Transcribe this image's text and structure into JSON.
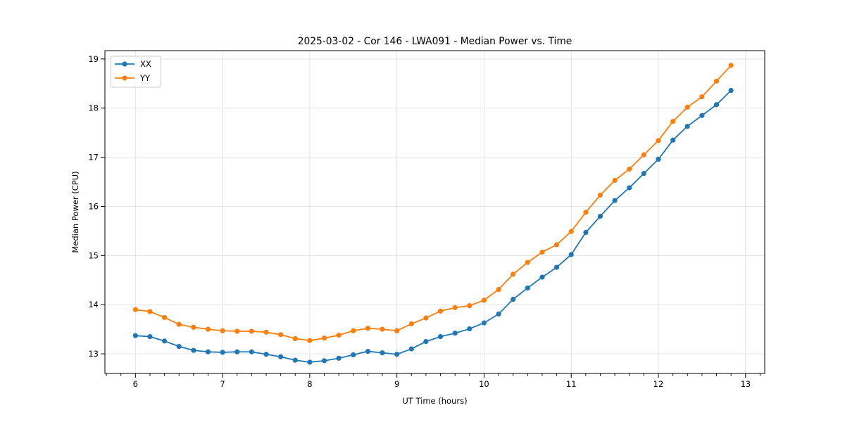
{
  "chart_data": {
    "type": "line",
    "title": "2025-03-02 - Cor 146 - LWA091 - Median Power vs. Time",
    "xlabel": "UT Time (hours)",
    "ylabel": "Median Power (CPU)",
    "xlim": [
      5.65,
      13.22
    ],
    "ylim": [
      12.6,
      19.17
    ],
    "x_ticks": [
      6,
      7,
      8,
      9,
      10,
      11,
      12,
      13
    ],
    "y_ticks": [
      13,
      14,
      15,
      16,
      17,
      18,
      19
    ],
    "x_minor_per_hour": 6,
    "grid": "major",
    "grid_color": "#e4e4e4",
    "legend_position": "upper-left",
    "marker": "circle",
    "x": [
      6.0,
      6.167,
      6.333,
      6.5,
      6.667,
      6.833,
      7.0,
      7.167,
      7.333,
      7.5,
      7.667,
      7.833,
      8.0,
      8.167,
      8.333,
      8.5,
      8.667,
      8.833,
      9.0,
      9.167,
      9.333,
      9.5,
      9.667,
      9.833,
      10.0,
      10.167,
      10.333,
      10.5,
      10.667,
      10.833,
      11.0,
      11.167,
      11.333,
      11.5,
      11.667,
      11.833,
      12.0,
      12.167,
      12.333,
      12.5,
      12.667,
      12.833
    ],
    "series": [
      {
        "name": "XX",
        "color": "#1f77b4",
        "values": [
          13.37,
          13.35,
          13.26,
          13.15,
          13.07,
          13.04,
          13.03,
          13.04,
          13.04,
          12.99,
          12.94,
          12.87,
          12.83,
          12.86,
          12.91,
          12.98,
          13.05,
          13.02,
          12.99,
          13.1,
          13.25,
          13.35,
          13.42,
          13.51,
          13.63,
          13.81,
          14.11,
          14.34,
          14.56,
          14.76,
          15.02,
          15.47,
          15.8,
          16.12,
          16.38,
          16.67,
          16.96,
          17.35,
          17.63,
          17.85,
          18.07,
          18.36
        ]
      },
      {
        "name": "YY",
        "color": "#ff7f0e",
        "values": [
          13.9,
          13.86,
          13.74,
          13.6,
          13.54,
          13.5,
          13.47,
          13.46,
          13.46,
          13.44,
          13.39,
          13.31,
          13.27,
          13.32,
          13.38,
          13.47,
          13.52,
          13.5,
          13.47,
          13.61,
          13.73,
          13.87,
          13.94,
          13.98,
          14.09,
          14.31,
          14.62,
          14.86,
          15.07,
          15.22,
          15.49,
          15.88,
          16.23,
          16.53,
          16.76,
          17.05,
          17.34,
          17.73,
          18.02,
          18.23,
          18.55,
          18.87
        ]
      }
    ]
  }
}
